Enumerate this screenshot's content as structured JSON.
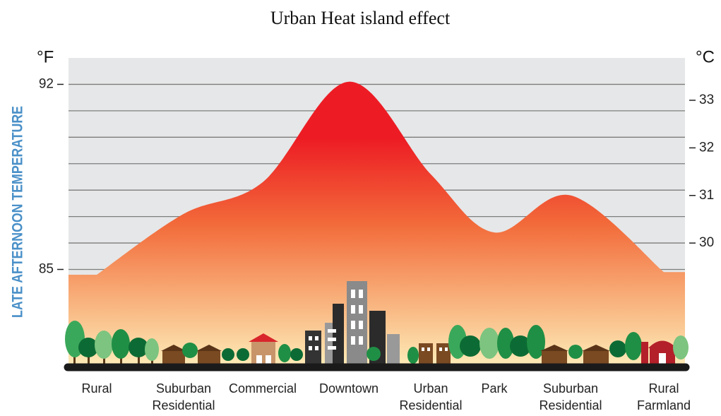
{
  "chart_data": {
    "type": "area",
    "title": "Urban Heat island effect",
    "y_axis_label": "LATE AFTERNOON TEMPERATURE",
    "y_unit": "°F",
    "y2_unit": "°C",
    "categories": [
      "Rural",
      "Suburban Residential",
      "Commercial",
      "Downtown",
      "Urban Residential",
      "Park",
      "Suburban Residential",
      "Rural Farmland"
    ],
    "values": [
      84.8,
      87.1,
      88.3,
      92.1,
      88.6,
      86.4,
      87.8,
      84.9
    ],
    "gradient": [
      "#ed1c24",
      "#f26b3a",
      "#f8ad78",
      "#fdecb8"
    ],
    "ylim": [
      81.3,
      93
    ],
    "yticks": [
      85,
      92
    ],
    "ygrid": [
      85,
      86,
      87,
      88,
      89,
      90,
      91,
      92
    ],
    "y2lim": [
      27.39,
      33.89
    ],
    "y2ticks": [
      30,
      31,
      32,
      33
    ],
    "grid": true
  }
}
